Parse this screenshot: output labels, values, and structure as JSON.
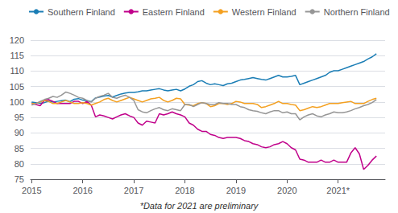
{
  "chart_data": {
    "type": "line",
    "footnote": "*Data for 2021 are preliminary",
    "x": [
      2015.0,
      2015.0833333333333,
      2015.1666666666667,
      2015.25,
      2015.3333333333333,
      2015.4166666666667,
      2015.5,
      2015.5833333333333,
      2015.6666666666667,
      2015.75,
      2015.8333333333333,
      2015.9166666666667,
      2016.0,
      2016.0833333333333,
      2016.1666666666667,
      2016.25,
      2016.3333333333333,
      2016.4166666666667,
      2016.5,
      2016.5833333333333,
      2016.6666666666667,
      2016.75,
      2016.8333333333333,
      2016.9166666666667,
      2017.0,
      2017.0833333333333,
      2017.1666666666667,
      2017.25,
      2017.3333333333333,
      2017.4166666666667,
      2017.5,
      2017.5833333333333,
      2017.6666666666667,
      2017.75,
      2017.8333333333333,
      2017.9166666666667,
      2018.0,
      2018.0833333333333,
      2018.1666666666667,
      2018.25,
      2018.3333333333333,
      2018.4166666666667,
      2018.5,
      2018.5833333333333,
      2018.6666666666667,
      2018.75,
      2018.8333333333333,
      2018.9166666666667,
      2019.0,
      2019.0833333333333,
      2019.1666666666667,
      2019.25,
      2019.3333333333333,
      2019.4166666666667,
      2019.5,
      2019.5833333333333,
      2019.6666666666667,
      2019.75,
      2019.8333333333333,
      2019.9166666666667,
      2020.0,
      2020.0833333333333,
      2020.1666666666667,
      2020.25,
      2020.3333333333333,
      2020.4166666666667,
      2020.5,
      2020.5833333333333,
      2020.6666666666667,
      2020.75,
      2020.8333333333333,
      2020.9166666666667,
      2021.0,
      2021.0833333333333,
      2021.1666666666667,
      2021.25,
      2021.3333333333333,
      2021.4166666666667,
      2021.5,
      2021.5833333333333,
      2021.6666666666667,
      2021.75
    ],
    "series": [
      {
        "name": "Southern Finland",
        "color": "#1a7db5",
        "values": [
          100.0,
          99.8,
          99.6,
          99.8,
          100.3,
          100.0,
          100.2,
          100.4,
          100.6,
          100.1,
          100.9,
          101.1,
          100.6,
          100.4,
          100.1,
          101.3,
          101.6,
          101.9,
          102.1,
          101.6,
          102.1,
          102.6,
          102.9,
          103.1,
          103.1,
          103.3,
          103.6,
          103.6,
          103.9,
          104.1,
          104.3,
          103.9,
          103.6,
          103.9,
          104.1,
          103.6,
          104.2,
          105.1,
          105.6,
          106.6,
          106.9,
          106.1,
          105.6,
          105.9,
          105.6,
          105.3,
          105.9,
          106.1,
          106.6,
          107.1,
          107.3,
          107.6,
          107.9,
          107.6,
          107.3,
          107.1,
          107.6,
          108.1,
          108.6,
          108.1,
          108.1,
          108.3,
          108.6,
          105.6,
          106.1,
          106.6,
          107.1,
          107.6,
          108.1,
          108.6,
          109.6,
          110.1,
          110.1,
          110.6,
          111.1,
          111.6,
          112.1,
          112.6,
          113.1,
          113.9,
          114.6,
          115.6
        ]
      },
      {
        "name": "Eastern Finland",
        "color": "#c0008a",
        "values": [
          99.5,
          99.2,
          98.8,
          100.5,
          100.8,
          100.2,
          99.5,
          99.5,
          99.5,
          99.5,
          100.2,
          100.2,
          99.5,
          100.2,
          99.0,
          95.2,
          95.8,
          95.5,
          95.0,
          94.5,
          95.2,
          95.8,
          96.2,
          95.5,
          95.0,
          93.2,
          92.5,
          93.8,
          93.5,
          93.2,
          96.2,
          95.8,
          96.2,
          96.8,
          96.2,
          95.8,
          95.2,
          93.2,
          92.5,
          91.2,
          90.5,
          90.5,
          89.5,
          89.2,
          88.5,
          88.2,
          88.5,
          88.5,
          88.5,
          88.2,
          87.5,
          87.2,
          86.5,
          86.2,
          85.5,
          85.2,
          85.5,
          86.2,
          86.5,
          87.2,
          86.5,
          85.2,
          84.5,
          81.5,
          81.2,
          80.5,
          80.5,
          80.5,
          81.2,
          80.5,
          80.5,
          81.2,
          80.5,
          80.5,
          80.5,
          83.5,
          85.2,
          83.2,
          78.2,
          79.5,
          81.2,
          82.5
        ]
      },
      {
        "name": "Western Finland",
        "color": "#f4a020",
        "values": [
          99.5,
          99.5,
          100.0,
          100.5,
          100.2,
          99.5,
          99.5,
          100.0,
          100.5,
          100.0,
          99.5,
          99.5,
          99.8,
          99.5,
          99.0,
          99.5,
          100.0,
          100.8,
          101.2,
          100.5,
          100.0,
          100.5,
          101.0,
          101.5,
          101.0,
          100.5,
          100.0,
          100.5,
          101.0,
          101.2,
          101.5,
          100.5,
          100.0,
          100.5,
          101.2,
          101.0,
          99.2,
          99.0,
          98.8,
          99.5,
          99.8,
          99.5,
          98.5,
          98.8,
          99.5,
          99.5,
          99.2,
          99.5,
          100.2,
          100.0,
          99.5,
          99.5,
          99.5,
          99.2,
          98.2,
          98.5,
          99.0,
          99.5,
          100.2,
          99.5,
          99.5,
          99.2,
          99.0,
          97.2,
          97.5,
          98.0,
          98.5,
          98.2,
          98.5,
          99.0,
          99.5,
          99.5,
          99.5,
          99.8,
          100.0,
          100.2,
          99.5,
          99.5,
          99.5,
          100.2,
          100.8,
          101.2
        ]
      },
      {
        "name": "Northern Finland",
        "color": "#969696",
        "values": [
          99.0,
          99.5,
          100.2,
          100.8,
          101.2,
          101.8,
          101.5,
          102.2,
          103.2,
          102.8,
          102.2,
          101.5,
          101.2,
          100.5,
          100.0,
          101.2,
          101.8,
          102.2,
          102.8,
          101.5,
          101.2,
          101.8,
          102.2,
          101.5,
          100.5,
          97.5,
          96.8,
          96.5,
          97.2,
          97.8,
          98.2,
          97.5,
          97.2,
          97.8,
          97.5,
          97.2,
          99.2,
          99.2,
          98.5,
          99.2,
          99.8,
          99.5,
          99.2,
          99.2,
          99.8,
          99.5,
          99.5,
          99.2,
          99.2,
          98.5,
          98.2,
          97.5,
          97.2,
          97.0,
          96.5,
          96.2,
          96.8,
          97.2,
          97.2,
          96.5,
          96.8,
          96.2,
          96.2,
          94.2,
          95.2,
          95.8,
          96.2,
          95.5,
          95.2,
          95.8,
          96.2,
          96.8,
          96.5,
          96.5,
          96.8,
          97.2,
          97.8,
          98.2,
          98.8,
          99.2,
          99.8,
          100.8
        ]
      }
    ],
    "xlim": [
      2014.98,
      2021.92
    ],
    "xticks": [
      2015,
      2016,
      2017,
      2018,
      2019,
      2020,
      {
        "value": 2021,
        "label": "2021*"
      }
    ],
    "ylim": [
      75,
      120
    ],
    "yticks": [
      75,
      80,
      85,
      90,
      95,
      100,
      105,
      110,
      115,
      120
    ],
    "grid": true,
    "legend": "upper left"
  }
}
